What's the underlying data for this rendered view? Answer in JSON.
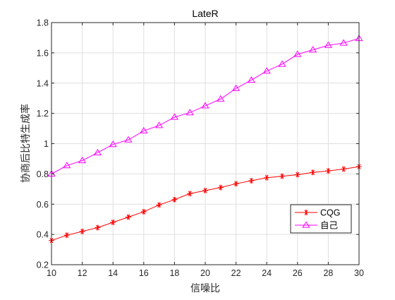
{
  "chart_data": {
    "type": "line",
    "title": "LateR",
    "xlabel": "信噪比",
    "ylabel": "协商后比特生成率",
    "xlim": [
      10,
      30
    ],
    "ylim": [
      0.2,
      1.8
    ],
    "x": [
      10,
      11,
      12,
      13,
      14,
      15,
      16,
      17,
      18,
      19,
      20,
      21,
      22,
      23,
      24,
      25,
      26,
      27,
      28,
      29,
      30
    ],
    "x_ticks": [
      10,
      12,
      14,
      16,
      18,
      20,
      22,
      24,
      26,
      28,
      30
    ],
    "y_ticks": [
      0.2,
      0.4,
      0.6,
      0.8,
      1,
      1.2,
      1.4,
      1.6,
      1.8
    ],
    "y_tick_labels": [
      "0.2",
      "0.4",
      "0.6",
      "0.8",
      "1",
      "1.2",
      "1.4",
      "1.6",
      "1.8"
    ],
    "grid": true,
    "legend_position": "lower-right",
    "series": [
      {
        "name": "CQG",
        "color": "#ff0000",
        "marker": "asterisk",
        "values": [
          0.36,
          0.395,
          0.42,
          0.445,
          0.48,
          0.515,
          0.55,
          0.595,
          0.63,
          0.67,
          0.69,
          0.71,
          0.735,
          0.755,
          0.775,
          0.785,
          0.795,
          0.81,
          0.82,
          0.832,
          0.848
        ]
      },
      {
        "name": "自己",
        "color": "#ff00ff",
        "marker": "triangle",
        "values": [
          0.8,
          0.855,
          0.888,
          0.94,
          0.995,
          1.025,
          1.085,
          1.12,
          1.175,
          1.205,
          1.25,
          1.295,
          1.365,
          1.42,
          1.48,
          1.525,
          1.59,
          1.62,
          1.65,
          1.665,
          1.695
        ]
      }
    ]
  }
}
